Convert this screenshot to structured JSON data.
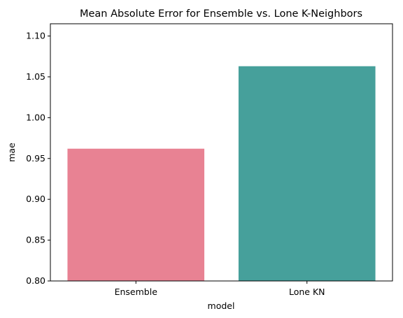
{
  "chart_data": {
    "type": "bar",
    "title": "Mean Absolute Error for Ensemble vs. Lone K-Neighbors",
    "xlabel": "model",
    "ylabel": "mae",
    "categories": [
      "Ensemble",
      "Lone KN"
    ],
    "values": [
      0.962,
      1.063
    ],
    "colors": [
      "#e88293",
      "#46a09b"
    ],
    "ylim": [
      0.8,
      1.115
    ],
    "yticks": [
      0.8,
      0.85,
      0.9,
      0.95,
      1.0,
      1.05,
      1.1
    ],
    "ytick_labels": [
      "0.80",
      "0.85",
      "0.90",
      "0.95",
      "1.00",
      "1.05",
      "1.10"
    ],
    "grid": false,
    "legend": "none"
  }
}
